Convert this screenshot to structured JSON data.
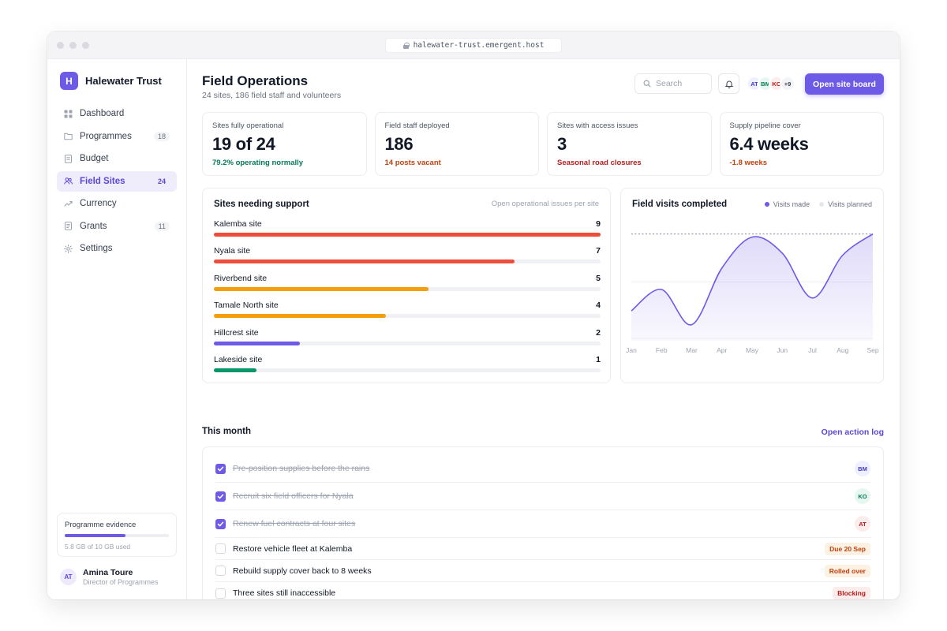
{
  "browser": {
    "url": "halewater-trust.emergent.host"
  },
  "brand": {
    "logo_letter": "H",
    "name": "Halewater Trust"
  },
  "sidebar": {
    "items": [
      {
        "label": "Dashboard",
        "icon": "dashboard-icon",
        "count": ""
      },
      {
        "label": "Programmes",
        "icon": "folder-icon",
        "count": "18"
      },
      {
        "label": "Budget",
        "icon": "document-icon",
        "count": ""
      },
      {
        "label": "Field Sites",
        "icon": "users-icon",
        "count": "24",
        "active": true
      },
      {
        "label": "Currency",
        "icon": "trend-icon",
        "count": ""
      },
      {
        "label": "Grants",
        "icon": "receipt-icon",
        "count": "11"
      },
      {
        "label": "Settings",
        "icon": "gear-icon",
        "count": ""
      }
    ],
    "evidence": {
      "title": "Programme evidence",
      "used_label": "5.8 GB of 10 GB used",
      "used_fraction": 0.58
    },
    "user": {
      "initials": "AT",
      "name": "Amina Toure",
      "role": "Director of Programmes"
    }
  },
  "header": {
    "title": "Field Operations",
    "subtitle": "24 sites, 186 field staff and volunteers",
    "search_placeholder": "Search",
    "team": [
      {
        "initials": "AT",
        "bg": "#eef0ff",
        "fg": "#4338ca"
      },
      {
        "initials": "BM",
        "bg": "#e6f7ef",
        "fg": "#047857"
      },
      {
        "initials": "KO",
        "bg": "#fdecec",
        "fg": "#b91c1c"
      },
      {
        "initials": "+9",
        "bg": "#f3f4f6",
        "fg": "#374151"
      }
    ],
    "primary_button": "Open site board"
  },
  "stats": [
    {
      "label": "Sites fully operational",
      "value": "19 of 24",
      "note": "79.2% operating normally",
      "note_color": "#047857"
    },
    {
      "label": "Field staff deployed",
      "value": "186",
      "note": "14 posts vacant",
      "note_color": "#c2410c"
    },
    {
      "label": "Sites with access issues",
      "value": "3",
      "note": "Seasonal road closures",
      "note_color": "#b91c1c"
    },
    {
      "label": "Supply pipeline cover",
      "value": "6.4 weeks",
      "note": "-1.8 weeks",
      "note_color": "#c2410c"
    }
  ],
  "support": {
    "title": "Sites needing support",
    "hint": "Open operational issues per site",
    "max": 9,
    "rows": [
      {
        "label": "Kalemba site",
        "value": 9,
        "color": "#ef4d3c"
      },
      {
        "label": "Nyala site",
        "value": 7,
        "color": "#ef4d3c"
      },
      {
        "label": "Riverbend site",
        "value": 5,
        "color": "#f59e0b"
      },
      {
        "label": "Tamale North site",
        "value": 4,
        "color": "#f59e0b"
      },
      {
        "label": "Hillcrest site",
        "value": 2,
        "color": "#6d5ae6"
      },
      {
        "label": "Lakeside site",
        "value": 1,
        "color": "#059669"
      }
    ]
  },
  "chart_data": {
    "type": "area",
    "title": "Field visits completed",
    "x": [
      "Jan",
      "Feb",
      "Mar",
      "Apr",
      "May",
      "Jun",
      "Jul",
      "Aug",
      "Sep"
    ],
    "series": [
      {
        "name": "Visits made",
        "values": [
          28,
          48,
          15,
          68,
          97,
          82,
          40,
          80,
          100
        ],
        "color": "#6d5ae6"
      },
      {
        "name": "Visits planned",
        "values": [
          100,
          100,
          100,
          100,
          100,
          100,
          100,
          100,
          100
        ],
        "color": "#9ca3af"
      }
    ],
    "ylim": [
      0,
      110
    ],
    "grid": true,
    "legend": "top-right"
  },
  "month_section": {
    "title": "This month",
    "link": "Open action log",
    "tasks": [
      {
        "text": "Pre-position supplies before the rains",
        "done": true,
        "avatar": "BM",
        "av_bg": "#eef0ff",
        "av_fg": "#4338ca"
      },
      {
        "text": "Recruit six field officers for Nyala",
        "done": true,
        "avatar": "KO",
        "av_bg": "#e6f7ef",
        "av_fg": "#047857"
      },
      {
        "text": "Renew fuel contracts at four sites",
        "done": true,
        "avatar": "AT",
        "av_bg": "#fdecec",
        "av_fg": "#b91c1c"
      },
      {
        "text": "Restore vehicle fleet at Kalemba",
        "done": false,
        "badge": "Due 20 Sep",
        "badge_bg": "#fdf1e3",
        "badge_fg": "#c2410c"
      },
      {
        "text": "Rebuild supply cover back to 8 weeks",
        "done": false,
        "badge": "Rolled over",
        "badge_bg": "#fdf1e3",
        "badge_fg": "#c2410c"
      },
      {
        "text": "Three sites still inaccessible",
        "done": false,
        "badge": "Blocking",
        "badge_bg": "#fdecec",
        "badge_fg": "#b91c1c"
      }
    ]
  }
}
